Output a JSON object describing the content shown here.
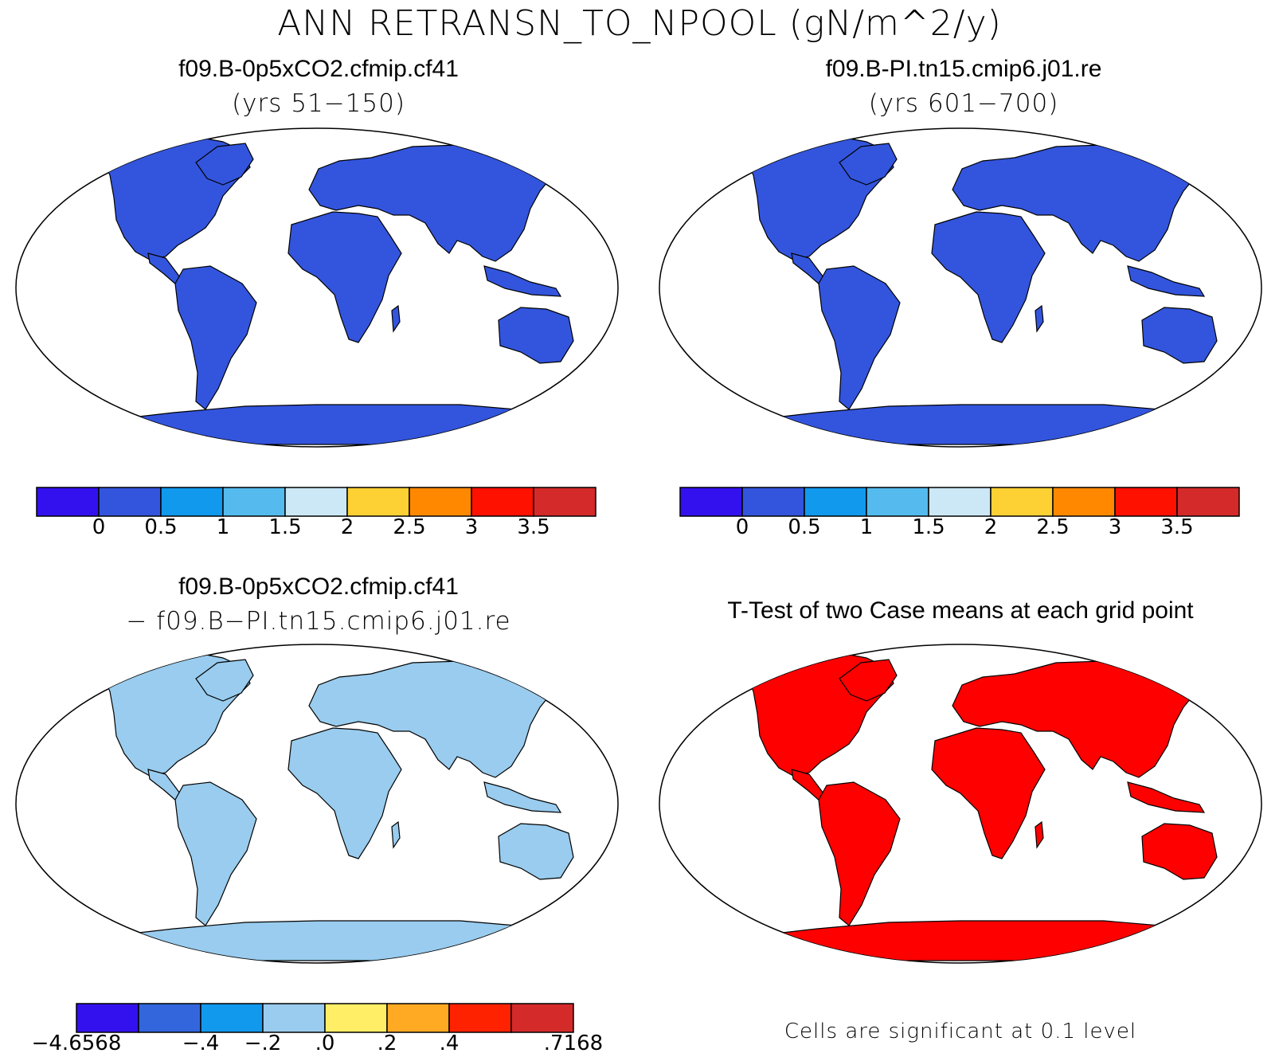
{
  "main_title": "ANN RETRANSN_TO_NPOOL (gN/m^2/y)",
  "colors": {
    "abs_scale": [
      "#3311ee",
      "#3355dd",
      "#1199ee",
      "#55bbee",
      "#cce8f6",
      "#fdd033",
      "#ff8800",
      "#ff1100",
      "#d42a2a"
    ],
    "diff_scale": [
      "#3311ee",
      "#3366dd",
      "#1199ee",
      "#99ccee",
      "#ffee66",
      "#ffaa22",
      "#ff2200",
      "#d42a2a"
    ],
    "ocean": "#ffffff",
    "significant": "#ff0000"
  },
  "panels": {
    "top_left": {
      "title": "f09.B-0p5xCO2.cfmip.cf41",
      "subtitle": "(yrs 51−150)",
      "colorbar_labels": [
        "0",
        "0.5",
        "1",
        "1.5",
        "2",
        "2.5",
        "3",
        "3.5"
      ]
    },
    "top_right": {
      "title": "f09.B-PI.tn15.cmip6.j01.re",
      "subtitle": "(yrs 601−700)",
      "colorbar_labels": [
        "0",
        "0.5",
        "1",
        "1.5",
        "2",
        "2.5",
        "3",
        "3.5"
      ]
    },
    "bottom_left": {
      "title": "f09.B-0p5xCO2.cfmip.cf41",
      "subtitle": "− f09.B−PI.tn15.cmip6.j01.re",
      "colorbar_labels": [
        "−4.6568",
        "−.4",
        "−.2",
        ".0",
        ".2",
        ".4",
        ".7168"
      ]
    },
    "bottom_right": {
      "title": "T-Test of two Case means at each grid point",
      "note": "Cells are significant at 0.1 level"
    }
  }
}
